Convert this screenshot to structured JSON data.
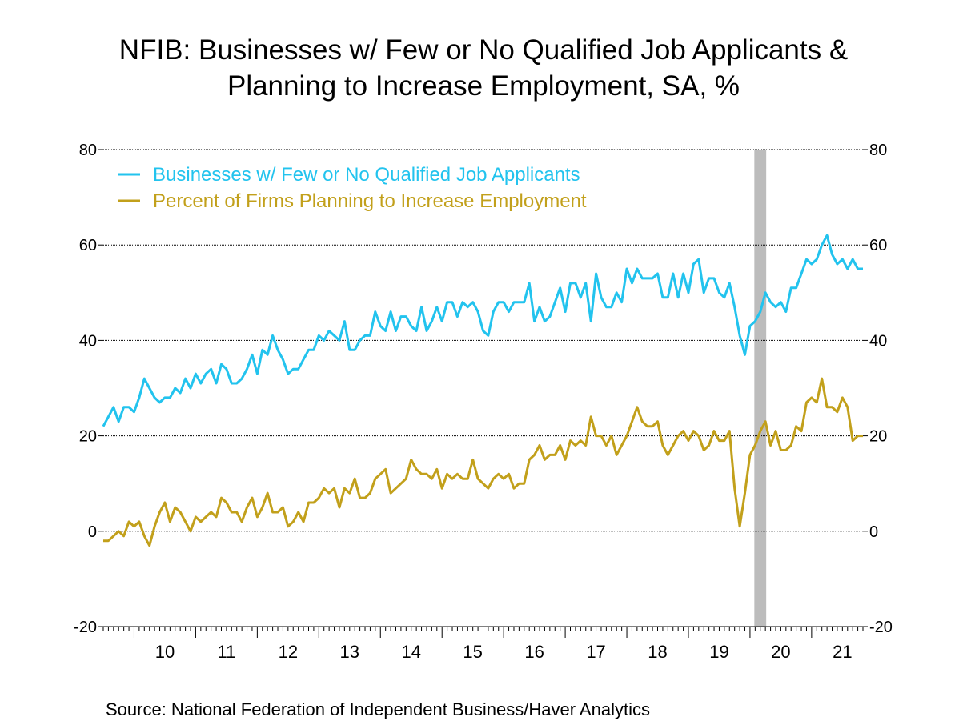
{
  "title": {
    "line1": "NFIB: Businesses w/ Few or No Qualified Job Applicants &",
    "line2": "Planning to Increase Employment, SA, %"
  },
  "source": "Source:  National Federation of Independent Business/Haver Analytics",
  "colors": {
    "series1": "#22c3ee",
    "series2": "#c2a01b",
    "recession": "#bcbcbc",
    "grid": "#000000"
  },
  "chart_data": {
    "type": "line",
    "ylim": [
      -20,
      80
    ],
    "yticks": [
      "80",
      "60",
      "40",
      "20",
      "0",
      "-20"
    ],
    "xticks": [
      "10",
      "11",
      "12",
      "13",
      "14",
      "15",
      "16",
      "17",
      "18",
      "19",
      "20",
      "21"
    ],
    "x_start": "2009-07",
    "x_end": "2021-11",
    "recession": {
      "start": "2020-02",
      "end": "2020-04"
    },
    "legend_position": "top-left",
    "series": [
      {
        "name": "Businesses w/ Few or No Qualified Job Applicants",
        "color_key": "series1",
        "values": [
          22,
          24,
          26,
          23,
          26,
          26,
          25,
          28,
          32,
          30,
          28,
          27,
          28,
          28,
          30,
          29,
          32,
          30,
          33,
          31,
          33,
          34,
          31,
          35,
          34,
          31,
          31,
          32,
          34,
          37,
          33,
          38,
          37,
          41,
          38,
          36,
          33,
          34,
          34,
          36,
          38,
          38,
          41,
          40,
          42,
          41,
          40,
          44,
          38,
          38,
          40,
          41,
          41,
          46,
          43,
          42,
          46,
          42,
          45,
          45,
          43,
          42,
          47,
          42,
          44,
          47,
          44,
          48,
          48,
          45,
          48,
          47,
          48,
          46,
          42,
          41,
          46,
          48,
          48,
          46,
          48,
          48,
          48,
          52,
          44,
          47,
          44,
          45,
          48,
          51,
          46,
          52,
          52,
          49,
          52,
          44,
          54,
          49,
          47,
          47,
          50,
          48,
          55,
          52,
          55,
          53,
          53,
          53,
          54,
          49,
          49,
          54,
          49,
          54,
          50,
          56,
          57,
          50,
          53,
          53,
          50,
          49,
          52,
          47,
          41,
          37,
          43,
          44,
          46,
          50,
          48,
          47,
          48,
          46,
          51,
          51,
          54,
          57,
          56,
          57,
          60,
          62,
          58,
          56,
          57,
          55,
          57,
          55,
          55
        ]
      },
      {
        "name": "Percent of Firms Planning to Increase Employment",
        "color_key": "series2",
        "values": [
          -2,
          -2,
          -1,
          0,
          -1,
          2,
          1,
          2,
          -1,
          -3,
          1,
          4,
          6,
          2,
          5,
          4,
          2,
          0,
          3,
          2,
          3,
          4,
          3,
          7,
          6,
          4,
          4,
          2,
          5,
          7,
          3,
          5,
          8,
          4,
          4,
          5,
          1,
          2,
          4,
          2,
          6,
          6,
          7,
          9,
          8,
          9,
          5,
          9,
          8,
          11,
          7,
          7,
          8,
          11,
          12,
          13,
          8,
          9,
          10,
          11,
          15,
          13,
          12,
          12,
          11,
          13,
          9,
          12,
          11,
          12,
          11,
          11,
          15,
          11,
          10,
          9,
          11,
          12,
          11,
          12,
          9,
          10,
          10,
          15,
          16,
          18,
          15,
          16,
          16,
          18,
          15,
          19,
          18,
          19,
          18,
          24,
          20,
          20,
          18,
          20,
          16,
          18,
          20,
          23,
          26,
          23,
          22,
          22,
          23,
          18,
          16,
          18,
          20,
          21,
          19,
          21,
          20,
          17,
          18,
          21,
          19,
          19,
          21,
          9,
          1,
          8,
          16,
          18,
          21,
          23,
          18,
          21,
          17,
          17,
          18,
          22,
          21,
          27,
          28,
          27,
          32,
          26,
          26,
          25,
          28,
          26,
          19,
          20,
          20
        ]
      }
    ]
  }
}
